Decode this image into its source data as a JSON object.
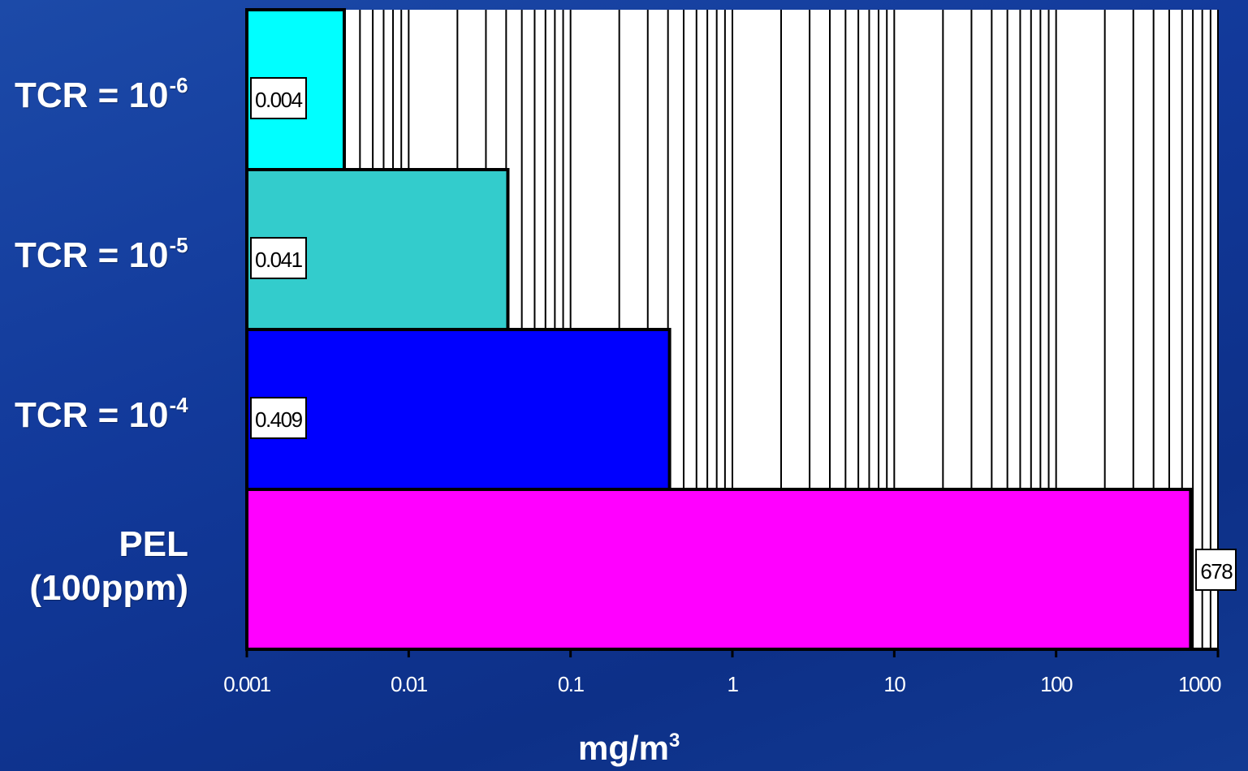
{
  "chart_data": {
    "type": "bar",
    "orientation": "horizontal",
    "x_scale": "log",
    "xlim": [
      0.001,
      1000
    ],
    "x_ticks": [
      "0.001",
      "0.01",
      "0.1",
      "1",
      "10",
      "100",
      "1000"
    ],
    "xlabel": "mg/m",
    "xlabel_superscript": "3",
    "grid": "vertical minor and major lines",
    "categories": [
      {
        "label": "TCR = 10",
        "superscript": "-6",
        "value": 0.004,
        "value_label": "0.004",
        "color": "#00ffff"
      },
      {
        "label": "TCR = 10",
        "superscript": "-5",
        "value": 0.041,
        "value_label": "0.041",
        "color": "#33cccc"
      },
      {
        "label": "TCR = 10",
        "superscript": "-4",
        "value": 0.409,
        "value_label": "0.409",
        "color": "#0000ff"
      },
      {
        "label": "PEL",
        "label_line2": "(100ppm)",
        "value": 678,
        "value_label": "678",
        "color": "#ff00ff"
      }
    ]
  }
}
